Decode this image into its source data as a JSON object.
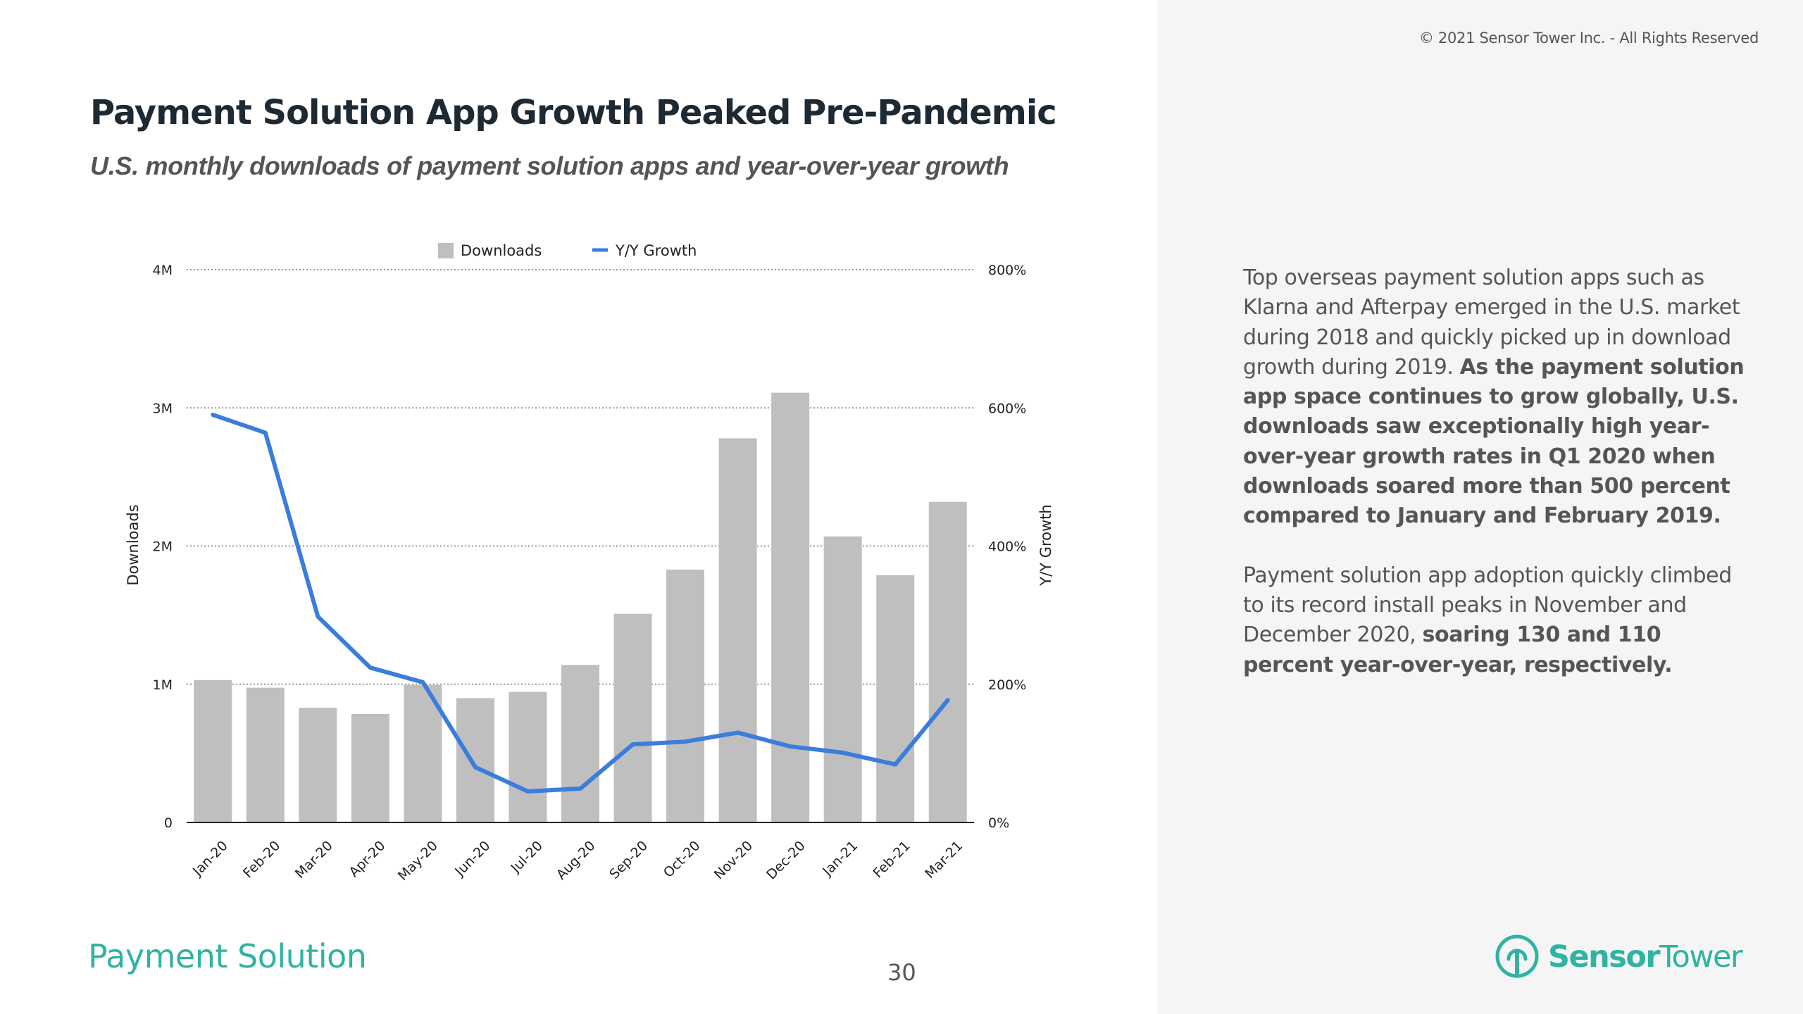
{
  "copyright": "© 2021 Sensor Tower Inc. - All Rights Reserved",
  "title": "Payment Solution App Growth Peaked Pre-Pandemic",
  "subtitle": "U.S. monthly downloads of payment solution apps and year-over-year growth",
  "side_text": {
    "p1_normal": "Top overseas payment solution apps such as Klarna and Afterpay emerged in the U.S. market during 2018 and quickly picked up in download growth during 2019. ",
    "p1_bold": "As the payment solution app space continues to grow globally, U.S. downloads saw exceptionally high year-over-year growth rates in Q1 2020 when downloads soared more than 500 percent compared to January and February 2019.",
    "p2_normal": "Payment solution app adoption quickly climbed to its record install peaks in November and December 2020, ",
    "p2_bold": "soaring 130 and 110 percent year-over-year, respectively."
  },
  "footer": {
    "section": "Payment Solution",
    "page": "30"
  },
  "logo": {
    "bold": "Sensor",
    "normal": "Tower",
    "icon": "sensor-tower-logo-icon"
  },
  "colors": {
    "bar": "#bfbfbf",
    "line": "#3b7ddd",
    "accent": "#2fb3a2",
    "title": "#1d2a33"
  },
  "chart_data": {
    "type": "bar+line",
    "categories": [
      "Jan-20",
      "Feb-20",
      "Mar-20",
      "Apr-20",
      "May-20",
      "Jun-20",
      "Jul-20",
      "Aug-20",
      "Sep-20",
      "Oct-20",
      "Nov-20",
      "Dec-20",
      "Jan-21",
      "Feb-21",
      "Mar-21"
    ],
    "series": [
      {
        "name": "Downloads",
        "type": "bar",
        "axis": "left",
        "values": [
          1030000,
          975000,
          830000,
          785000,
          995000,
          900000,
          945000,
          1140000,
          1510000,
          1830000,
          2780000,
          3110000,
          2070000,
          1790000,
          2320000
        ]
      },
      {
        "name": "Y/Y Growth",
        "type": "line",
        "axis": "right",
        "values": [
          590,
          564,
          298,
          224,
          203,
          80,
          45,
          49,
          113,
          117,
          130,
          110,
          101,
          84,
          177
        ]
      }
    ],
    "ylabel": "Downloads",
    "y2label": "Y/Y Growth",
    "ylim": [
      0,
      4000000
    ],
    "y2lim": [
      0,
      800
    ],
    "yticks": [
      "0",
      "1M",
      "2M",
      "3M",
      "4M"
    ],
    "y2ticks": [
      "0%",
      "200%",
      "400%",
      "600%",
      "800%"
    ],
    "legend": [
      "Downloads",
      "Y/Y Growth"
    ],
    "grid": "dotted"
  }
}
